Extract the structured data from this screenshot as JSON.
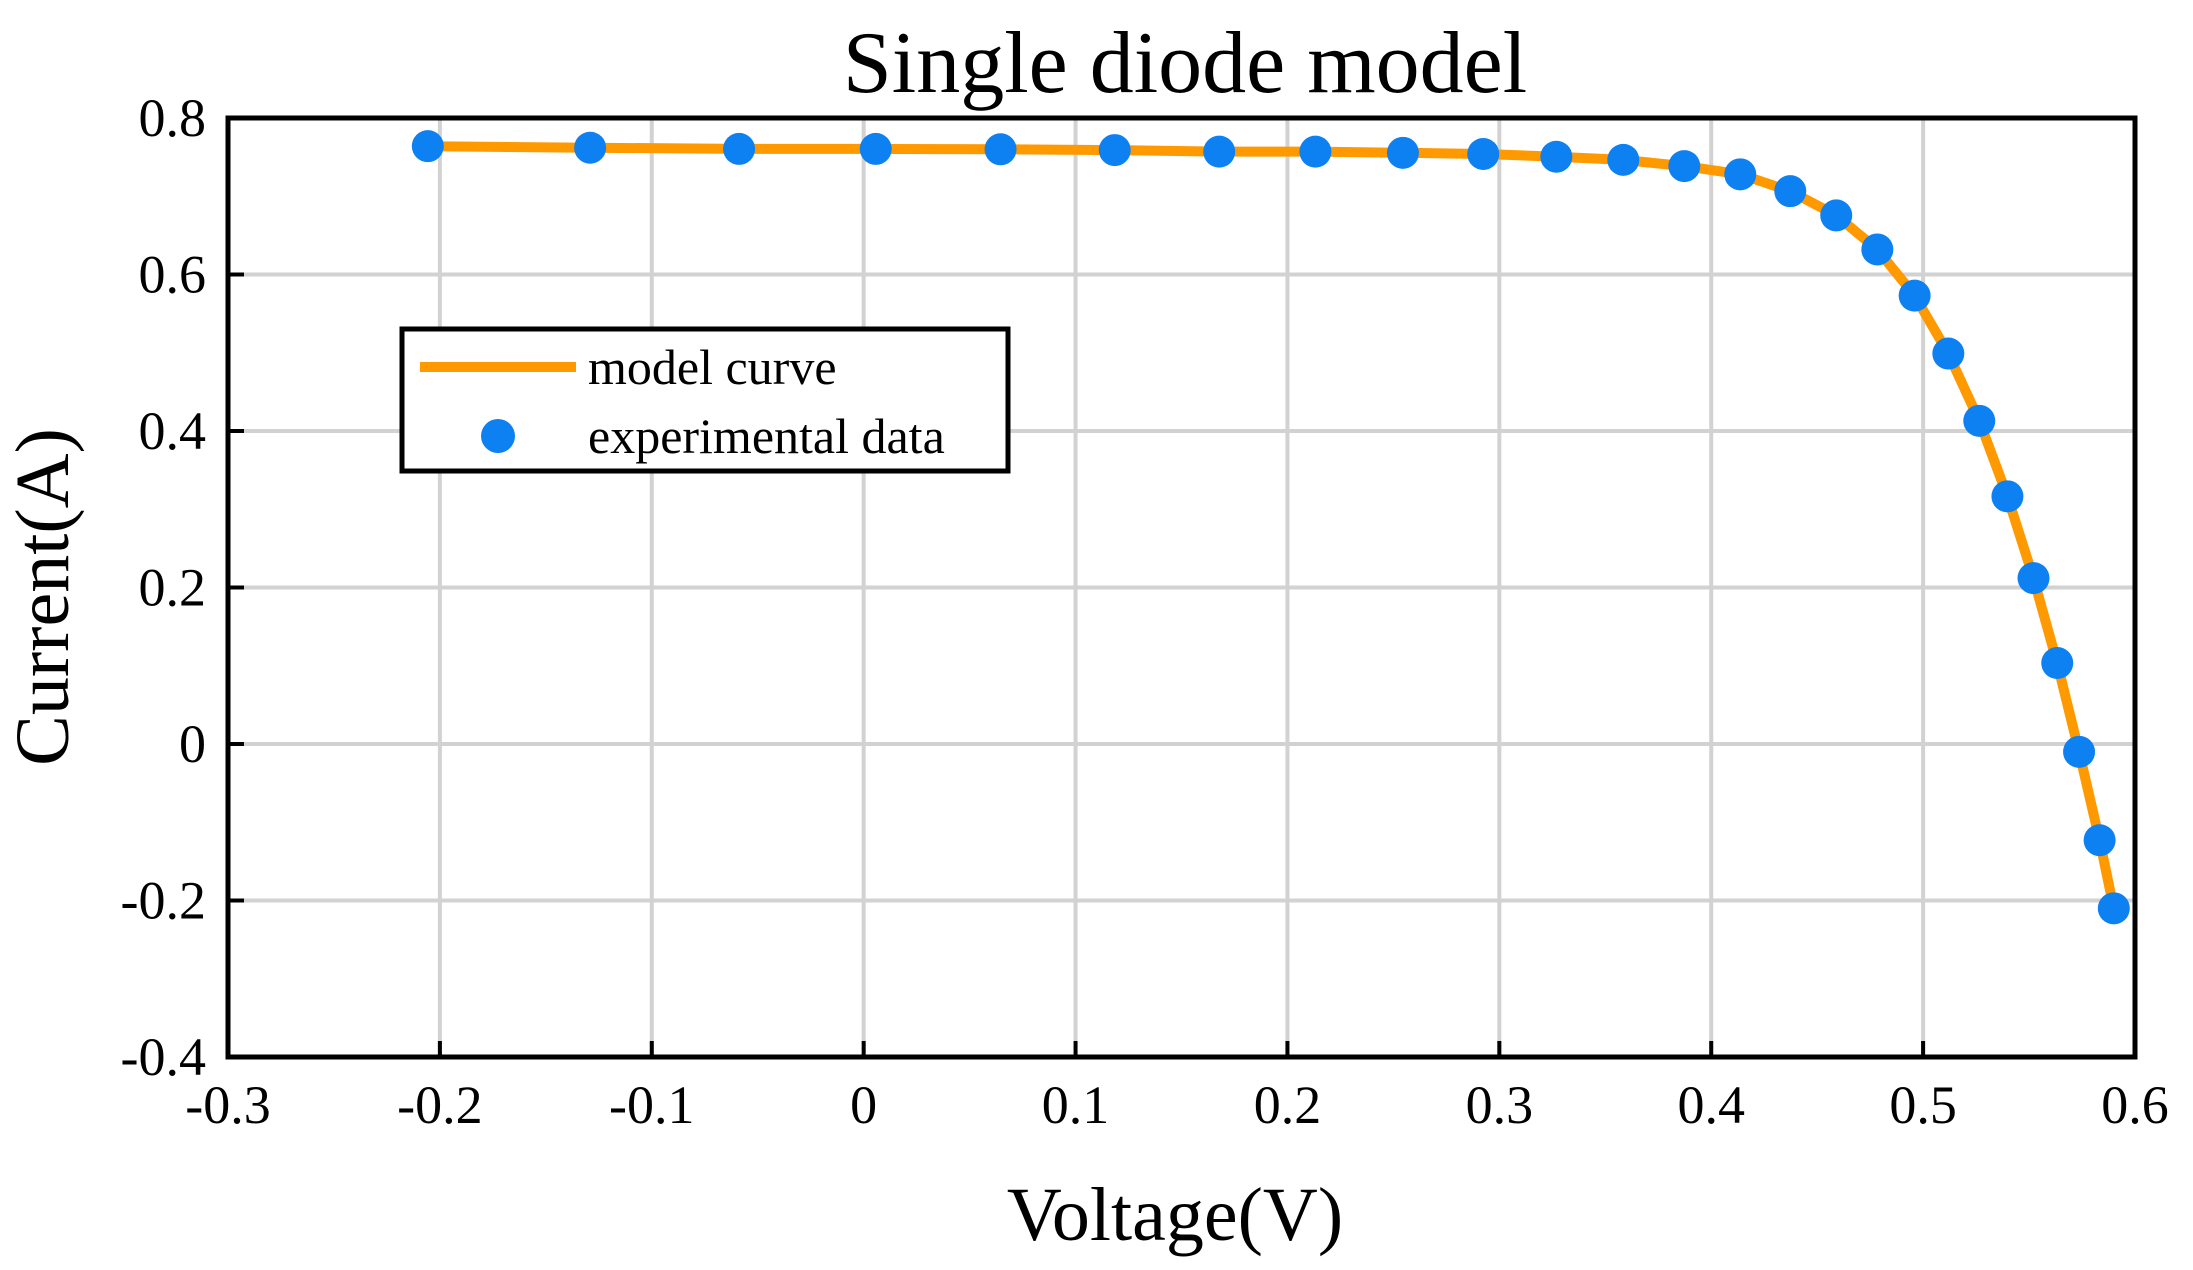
{
  "chart_data": {
    "type": "line",
    "title": "Single diode model",
    "xlabel": "Voltage(V)",
    "ylabel": "Current(A)",
    "xlim": [
      -0.3,
      0.6
    ],
    "ylim": [
      -0.4,
      0.8
    ],
    "x_ticks": [
      -0.3,
      -0.2,
      -0.1,
      0,
      0.1,
      0.2,
      0.3,
      0.4,
      0.5,
      0.6
    ],
    "x_tick_labels": [
      "-0.3",
      "-0.2",
      "-0.1",
      "0",
      "0.1",
      "0.2",
      "0.3",
      "0.4",
      "0.5",
      "0.6"
    ],
    "y_ticks": [
      -0.4,
      -0.2,
      0,
      0.2,
      0.4,
      0.6,
      0.8
    ],
    "y_tick_labels": [
      "-0.4",
      "-0.2",
      "0",
      "0.2",
      "0.4",
      "0.6",
      "0.8"
    ],
    "grid": true,
    "legend_position": "upper-left",
    "series": [
      {
        "name": "model curve",
        "kind": "line",
        "color": "#ff9900",
        "x": [
          -0.2057,
          -0.1291,
          -0.0588,
          0.0057,
          0.0646,
          0.1185,
          0.1678,
          0.2132,
          0.2545,
          0.2924,
          0.3269,
          0.3585,
          0.3873,
          0.4137,
          0.4373,
          0.459,
          0.4784,
          0.496,
          0.5119,
          0.5265,
          0.5398,
          0.5521,
          0.5633,
          0.5736,
          0.5833,
          0.59
        ],
        "y": [
          0.764,
          0.762,
          0.7605,
          0.7605,
          0.76,
          0.759,
          0.757,
          0.757,
          0.7555,
          0.754,
          0.7505,
          0.7465,
          0.7385,
          0.728,
          0.7065,
          0.6755,
          0.632,
          0.573,
          0.499,
          0.413,
          0.3165,
          0.212,
          0.1035,
          -0.01,
          -0.123,
          -0.21
        ]
      },
      {
        "name": "experimental data",
        "kind": "scatter",
        "color": "#0d80f2",
        "x": [
          -0.2057,
          -0.1291,
          -0.0588,
          0.0057,
          0.0646,
          0.1185,
          0.1678,
          0.2132,
          0.2545,
          0.2924,
          0.3269,
          0.3585,
          0.3873,
          0.4137,
          0.4373,
          0.459,
          0.4784,
          0.496,
          0.5119,
          0.5265,
          0.5398,
          0.5521,
          0.5633,
          0.5736,
          0.5833,
          0.59
        ],
        "y": [
          0.764,
          0.762,
          0.7605,
          0.7605,
          0.76,
          0.759,
          0.757,
          0.757,
          0.7555,
          0.754,
          0.7505,
          0.7465,
          0.7385,
          0.728,
          0.7065,
          0.6755,
          0.632,
          0.573,
          0.499,
          0.413,
          0.3165,
          0.212,
          0.1035,
          -0.01,
          -0.123,
          -0.21
        ]
      }
    ]
  }
}
